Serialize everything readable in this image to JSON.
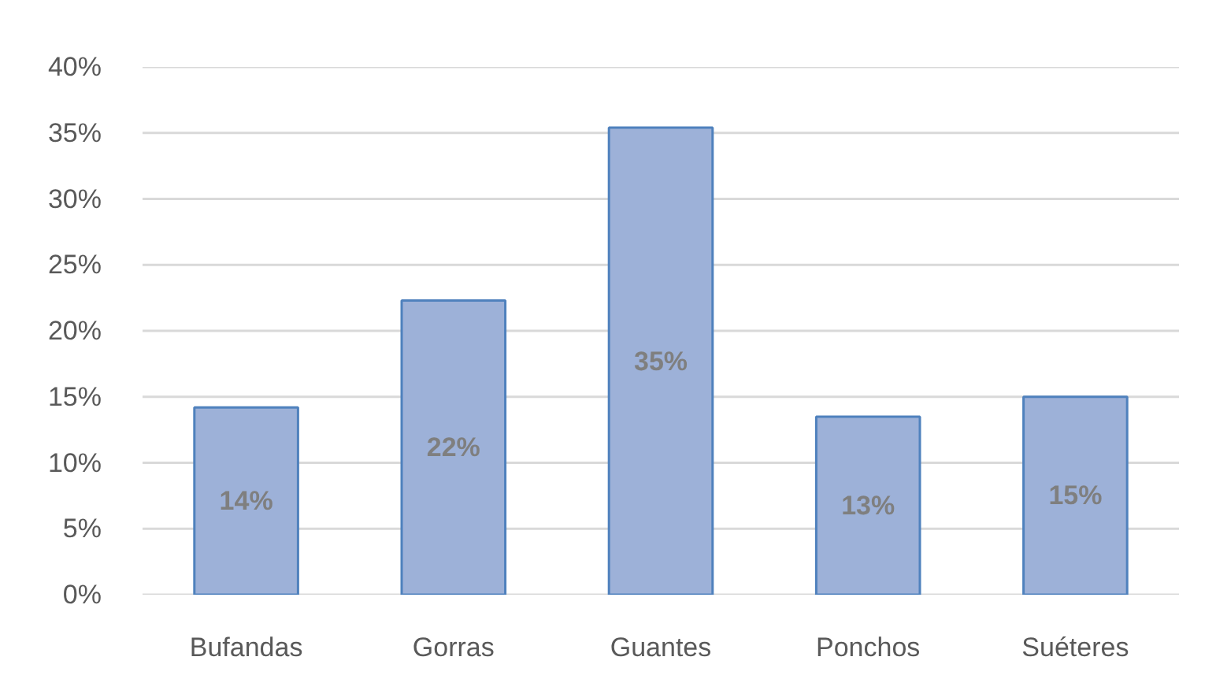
{
  "chart_data": {
    "type": "bar",
    "categories": [
      "Bufandas",
      "Gorras",
      "Guantes",
      "Ponchos",
      "Suéteres"
    ],
    "values": [
      14.2,
      22.3,
      35.4,
      13.5,
      15.0
    ],
    "value_labels": [
      "14%",
      "22%",
      "35%",
      "13%",
      "15%"
    ],
    "color": "#9db1d8",
    "ylim": [
      0,
      40
    ],
    "yticks": [
      {
        "value": 0,
        "label": "0%"
      },
      {
        "value": 5,
        "label": "5%"
      },
      {
        "value": 10,
        "label": "10%"
      },
      {
        "value": 15,
        "label": "15%"
      },
      {
        "value": 20,
        "label": "20%"
      },
      {
        "value": 25,
        "label": "25%"
      },
      {
        "value": 30,
        "label": "30%"
      },
      {
        "value": 35,
        "label": "35%"
      },
      {
        "value": 40,
        "label": "40%"
      }
    ],
    "grid": "y"
  }
}
